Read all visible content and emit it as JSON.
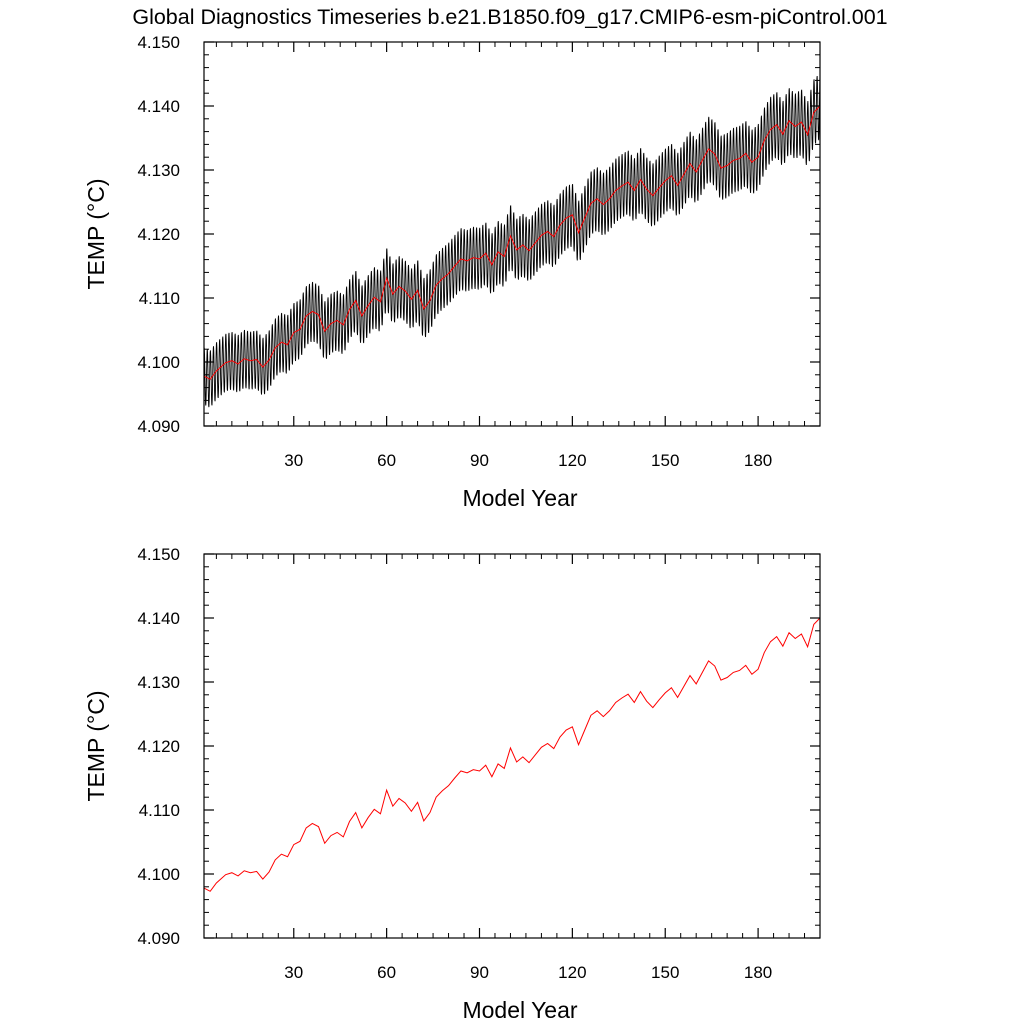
{
  "title": "Global Diagnostics Timeseries b.e21.B1850.f09_g17.CMIP6-esm-piControl.001",
  "chart_data": [
    {
      "type": "line",
      "xlabel": "Model Year",
      "ylabel": "TEMP (°C)",
      "xlim": [
        1,
        200
      ],
      "ylim": [
        4.09,
        4.15
      ],
      "xticks": [
        30,
        60,
        90,
        120,
        150,
        180
      ],
      "xtick_labels": [
        "30",
        "60",
        "90",
        "120",
        "150",
        "180"
      ],
      "yticks": [
        4.09,
        4.1,
        4.11,
        4.12,
        4.13,
        4.14,
        4.15
      ],
      "ytick_labels": [
        "4.090",
        "4.100",
        "4.110",
        "4.120",
        "4.130",
        "4.140",
        "4.150"
      ],
      "grid": false,
      "series": [
        {
          "color": "#000000",
          "resolution": "monthly",
          "seasonal_amplitude": [
            [
              1,
              0.0045
            ],
            [
              60,
              0.0048
            ],
            [
              200,
              0.0052
            ]
          ],
          "follows_annual_series": true
        },
        {
          "color": "#ff0000",
          "resolution": "annual",
          "x": [
            1,
            3,
            5,
            8,
            10,
            12,
            14,
            16,
            18,
            20,
            22,
            24,
            26,
            28,
            30,
            32,
            34,
            36,
            38,
            40,
            42,
            44,
            46,
            48,
            50,
            52,
            54,
            56,
            58,
            60,
            62,
            64,
            66,
            68,
            70,
            72,
            74,
            76,
            78,
            80,
            82,
            84,
            86,
            88,
            90,
            92,
            94,
            96,
            98,
            100,
            102,
            104,
            106,
            108,
            110,
            112,
            114,
            116,
            118,
            120,
            122,
            124,
            126,
            128,
            130,
            132,
            134,
            136,
            138,
            140,
            142,
            144,
            146,
            148,
            150,
            152,
            154,
            156,
            158,
            160,
            162,
            164,
            166,
            168,
            170,
            172,
            174,
            176,
            178,
            180,
            182,
            184,
            186,
            188,
            190,
            192,
            194,
            196,
            198,
            200
          ],
          "values": [
            4.0978,
            4.0973,
            4.0986,
            4.0999,
            4.1002,
            4.0997,
            4.1005,
            4.1002,
            4.1004,
            4.0992,
            4.1003,
            4.1022,
            4.1031,
            4.1027,
            4.1046,
            4.1051,
            4.1072,
            4.1079,
            4.1074,
            4.1048,
            4.106,
            4.1065,
            4.1058,
            4.1082,
            4.1096,
            4.1072,
            4.1088,
            4.1101,
            4.1094,
            4.1131,
            4.1106,
            4.1118,
            4.1111,
            4.1098,
            4.1112,
            4.1083,
            4.1096,
            4.112,
            4.113,
            4.1138,
            4.115,
            4.1161,
            4.1158,
            4.1163,
            4.1161,
            4.117,
            4.1152,
            4.1172,
            4.1165,
            4.1197,
            4.1175,
            4.1183,
            4.1174,
            4.1186,
            4.1198,
            4.1204,
            4.1196,
            4.1214,
            4.1225,
            4.123,
            4.1202,
            4.1225,
            4.1248,
            4.1255,
            4.1246,
            4.1255,
            4.1268,
            4.1275,
            4.1281,
            4.1268,
            4.1285,
            4.127,
            4.126,
            4.1272,
            4.1283,
            4.1291,
            4.1276,
            4.1293,
            4.131,
            4.1297,
            4.1315,
            4.1333,
            4.1325,
            4.1303,
            4.1307,
            4.1315,
            4.1318,
            4.1326,
            4.1312,
            4.132,
            4.1346,
            4.1363,
            4.1371,
            4.1356,
            4.1377,
            4.1368,
            4.1375,
            4.1355,
            4.139,
            4.14
          ]
        }
      ]
    },
    {
      "type": "line",
      "xlabel": "Model Year",
      "ylabel": "TEMP (°C)",
      "xlim": [
        1,
        200
      ],
      "ylim": [
        4.09,
        4.15
      ],
      "xticks": [
        30,
        60,
        90,
        120,
        150,
        180
      ],
      "xtick_labels": [
        "30",
        "60",
        "90",
        "120",
        "150",
        "180"
      ],
      "yticks": [
        4.09,
        4.1,
        4.11,
        4.12,
        4.13,
        4.14,
        4.15
      ],
      "ytick_labels": [
        "4.090",
        "4.100",
        "4.110",
        "4.120",
        "4.130",
        "4.140",
        "4.150"
      ],
      "grid": false,
      "series": [
        {
          "color": "#ff0000",
          "resolution": "annual",
          "x": [
            1,
            3,
            5,
            8,
            10,
            12,
            14,
            16,
            18,
            20,
            22,
            24,
            26,
            28,
            30,
            32,
            34,
            36,
            38,
            40,
            42,
            44,
            46,
            48,
            50,
            52,
            54,
            56,
            58,
            60,
            62,
            64,
            66,
            68,
            70,
            72,
            74,
            76,
            78,
            80,
            82,
            84,
            86,
            88,
            90,
            92,
            94,
            96,
            98,
            100,
            102,
            104,
            106,
            108,
            110,
            112,
            114,
            116,
            118,
            120,
            122,
            124,
            126,
            128,
            130,
            132,
            134,
            136,
            138,
            140,
            142,
            144,
            146,
            148,
            150,
            152,
            154,
            156,
            158,
            160,
            162,
            164,
            166,
            168,
            170,
            172,
            174,
            176,
            178,
            180,
            182,
            184,
            186,
            188,
            190,
            192,
            194,
            196,
            198,
            200
          ],
          "values": [
            4.0978,
            4.0973,
            4.0986,
            4.0999,
            4.1002,
            4.0997,
            4.1005,
            4.1002,
            4.1004,
            4.0992,
            4.1003,
            4.1022,
            4.1031,
            4.1027,
            4.1046,
            4.1051,
            4.1072,
            4.1079,
            4.1074,
            4.1048,
            4.106,
            4.1065,
            4.1058,
            4.1082,
            4.1096,
            4.1072,
            4.1088,
            4.1101,
            4.1094,
            4.1131,
            4.1106,
            4.1118,
            4.1111,
            4.1098,
            4.1112,
            4.1083,
            4.1096,
            4.112,
            4.113,
            4.1138,
            4.115,
            4.1161,
            4.1158,
            4.1163,
            4.1161,
            4.117,
            4.1152,
            4.1172,
            4.1165,
            4.1197,
            4.1175,
            4.1183,
            4.1174,
            4.1186,
            4.1198,
            4.1204,
            4.1196,
            4.1214,
            4.1225,
            4.123,
            4.1202,
            4.1225,
            4.1248,
            4.1255,
            4.1246,
            4.1255,
            4.1268,
            4.1275,
            4.1281,
            4.1268,
            4.1285,
            4.127,
            4.126,
            4.1272,
            4.1283,
            4.1291,
            4.1276,
            4.1293,
            4.131,
            4.1297,
            4.1315,
            4.1333,
            4.1325,
            4.1303,
            4.1307,
            4.1315,
            4.1318,
            4.1326,
            4.1312,
            4.132,
            4.1346,
            4.1363,
            4.1371,
            4.1356,
            4.1377,
            4.1368,
            4.1375,
            4.1355,
            4.139,
            4.14
          ]
        }
      ]
    }
  ]
}
